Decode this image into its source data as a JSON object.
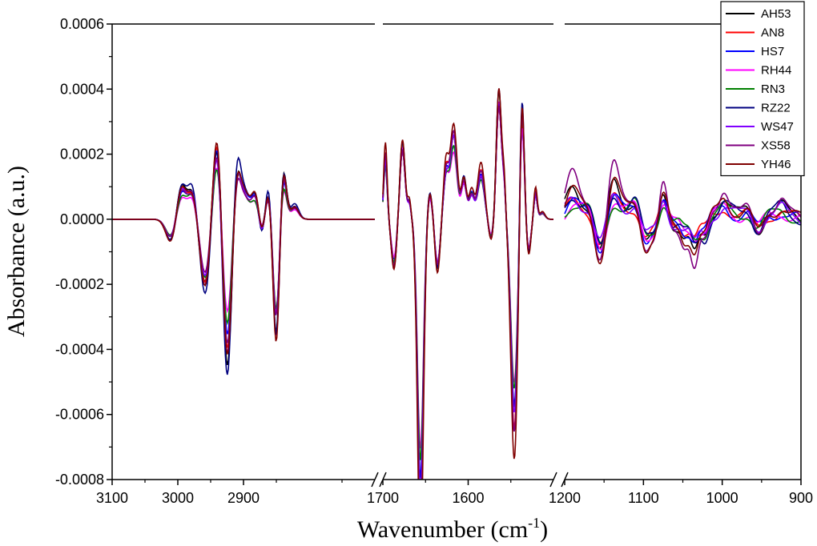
{
  "chart_data": {
    "type": "line",
    "xlabel": "Wavenumber (cm",
    "xlabel_sup": "-1",
    "xlabel_close": ")",
    "ylabel": "Absorbance (a.u.)",
    "ylim": [
      -0.0008,
      0.0006
    ],
    "yticks": [
      0.0006,
      0.0004,
      0.0002,
      0.0,
      -0.0002,
      -0.0004,
      -0.0006,
      -0.0008
    ],
    "ytick_labels": [
      "0.0006",
      "0.0004",
      "0.0002",
      "0.0000",
      "-0.0002",
      "-0.0004",
      "-0.0006",
      "-0.0008"
    ],
    "x_axis_reversed": true,
    "x_axis_broken": true,
    "x_segments": [
      {
        "xlim": [
          3100,
          2700
        ],
        "ticks": [
          3100,
          3000,
          2900
        ],
        "tick_labels": [
          "3100",
          "3000",
          "2900"
        ]
      },
      {
        "xlim": [
          1700,
          1500
        ],
        "ticks": [
          1700,
          1600
        ],
        "tick_labels": [
          "1700",
          "1600"
        ]
      },
      {
        "xlim": [
          1200,
          900
        ],
        "ticks": [
          1200,
          1100,
          1000,
          900
        ],
        "tick_labels": [
          "1200",
          "1100",
          "1000",
          "900"
        ]
      }
    ],
    "grid": false,
    "legend_position": "top-right",
    "series": [
      {
        "name": "AH53",
        "color": "#000000",
        "scale": 1.0,
        "seg1_scale": 1.0,
        "noise_scale": 1.0
      },
      {
        "name": "AN8",
        "color": "#ff0000",
        "scale": 0.95,
        "seg1_scale": 1.0,
        "noise_scale": 0.6
      },
      {
        "name": "HS7",
        "color": "#0000ff",
        "scale": 0.92,
        "seg1_scale": 0.95,
        "noise_scale": 0.7
      },
      {
        "name": "RH44",
        "color": "#ff00ff",
        "scale": 0.75,
        "seg1_scale": 0.9,
        "noise_scale": 0.8
      },
      {
        "name": "RN3",
        "color": "#008000",
        "scale": 0.8,
        "seg1_scale": 0.95,
        "noise_scale": 0.8
      },
      {
        "name": "RZ22",
        "color": "#000080",
        "scale": 1.1,
        "seg1_scale": 1.0,
        "noise_scale": 0.8
      },
      {
        "name": "WS47",
        "color": "#8000ff",
        "scale": 0.9,
        "seg1_scale": 0.95,
        "noise_scale": 0.8
      },
      {
        "name": "XS58",
        "color": "#800080",
        "scale": 0.85,
        "seg1_scale": 1.0,
        "noise_scale": 1.6
      },
      {
        "name": "YH46",
        "color": "#800000",
        "scale": 1.0,
        "seg1_scale": 1.15,
        "noise_scale": 1.0
      }
    ],
    "features": {
      "seg0": [
        [
          3010,
          -7e-05,
          8
        ],
        [
          2995,
          0.0001,
          7
        ],
        [
          2978,
          9e-05,
          7
        ],
        [
          2958,
          -0.00022,
          8
        ],
        [
          2940,
          0.00027,
          7
        ],
        [
          2925,
          -0.00045,
          7
        ],
        [
          2910,
          0.00018,
          6
        ],
        [
          2897,
          7e-05,
          6
        ],
        [
          2882,
          8e-05,
          6
        ],
        [
          2872,
          -6e-05,
          5
        ],
        [
          2862,
          0.0001,
          5
        ],
        [
          2850,
          -0.00038,
          5
        ],
        [
          2840,
          0.00016,
          5
        ],
        [
          2822,
          4e-05,
          6
        ]
      ],
      "seg1": [
        [
          1697,
          0.00019,
          2
        ],
        [
          1687,
          -0.00014,
          3
        ],
        [
          1677,
          0.00023,
          3
        ],
        [
          1669,
          5e-05,
          2
        ],
        [
          1656,
          -0.00085,
          3.5
        ],
        [
          1645,
          8e-05,
          3
        ],
        [
          1636,
          -0.00015,
          3
        ],
        [
          1626,
          0.00014,
          3
        ],
        [
          1617,
          0.00025,
          4
        ],
        [
          1605,
          0.00012,
          3
        ],
        [
          1596,
          8e-05,
          3
        ],
        [
          1585,
          0.00014,
          4
        ],
        [
          1573,
          -6e-05,
          3
        ],
        [
          1564,
          0.00038,
          3
        ],
        [
          1558,
          0.0001,
          2
        ],
        [
          1546,
          -0.0006,
          4
        ],
        [
          1537,
          0.00037,
          2.5
        ],
        [
          1529,
          -0.0001,
          2.5
        ],
        [
          1521,
          8e-05,
          2
        ],
        [
          1513,
          2e-05,
          3
        ]
      ],
      "seg2": [
        [
          1190,
          8e-05,
          8
        ],
        [
          1170,
          5e-05,
          8
        ],
        [
          1155,
          -0.00013,
          7
        ],
        [
          1138,
          0.0001,
          7
        ],
        [
          1122,
          3e-05,
          7
        ],
        [
          1110,
          6e-05,
          6
        ],
        [
          1097,
          -8e-05,
          6
        ],
        [
          1085,
          -4e-05,
          5
        ],
        [
          1075,
          8e-05,
          5
        ],
        [
          1062,
          -2e-05,
          5
        ],
        [
          1048,
          -5e-05,
          5
        ],
        [
          1035,
          -9e-05,
          5
        ],
        [
          1022,
          -6e-05,
          5
        ],
        [
          1012,
          2e-05,
          5
        ],
        [
          998,
          6e-05,
          6
        ],
        [
          985,
          2e-05,
          6
        ],
        [
          968,
          3e-05,
          6
        ],
        [
          955,
          -4e-05,
          6
        ],
        [
          940,
          2e-05,
          6
        ],
        [
          925,
          4e-05,
          6
        ],
        [
          910,
          1e-05,
          6
        ]
      ]
    }
  }
}
